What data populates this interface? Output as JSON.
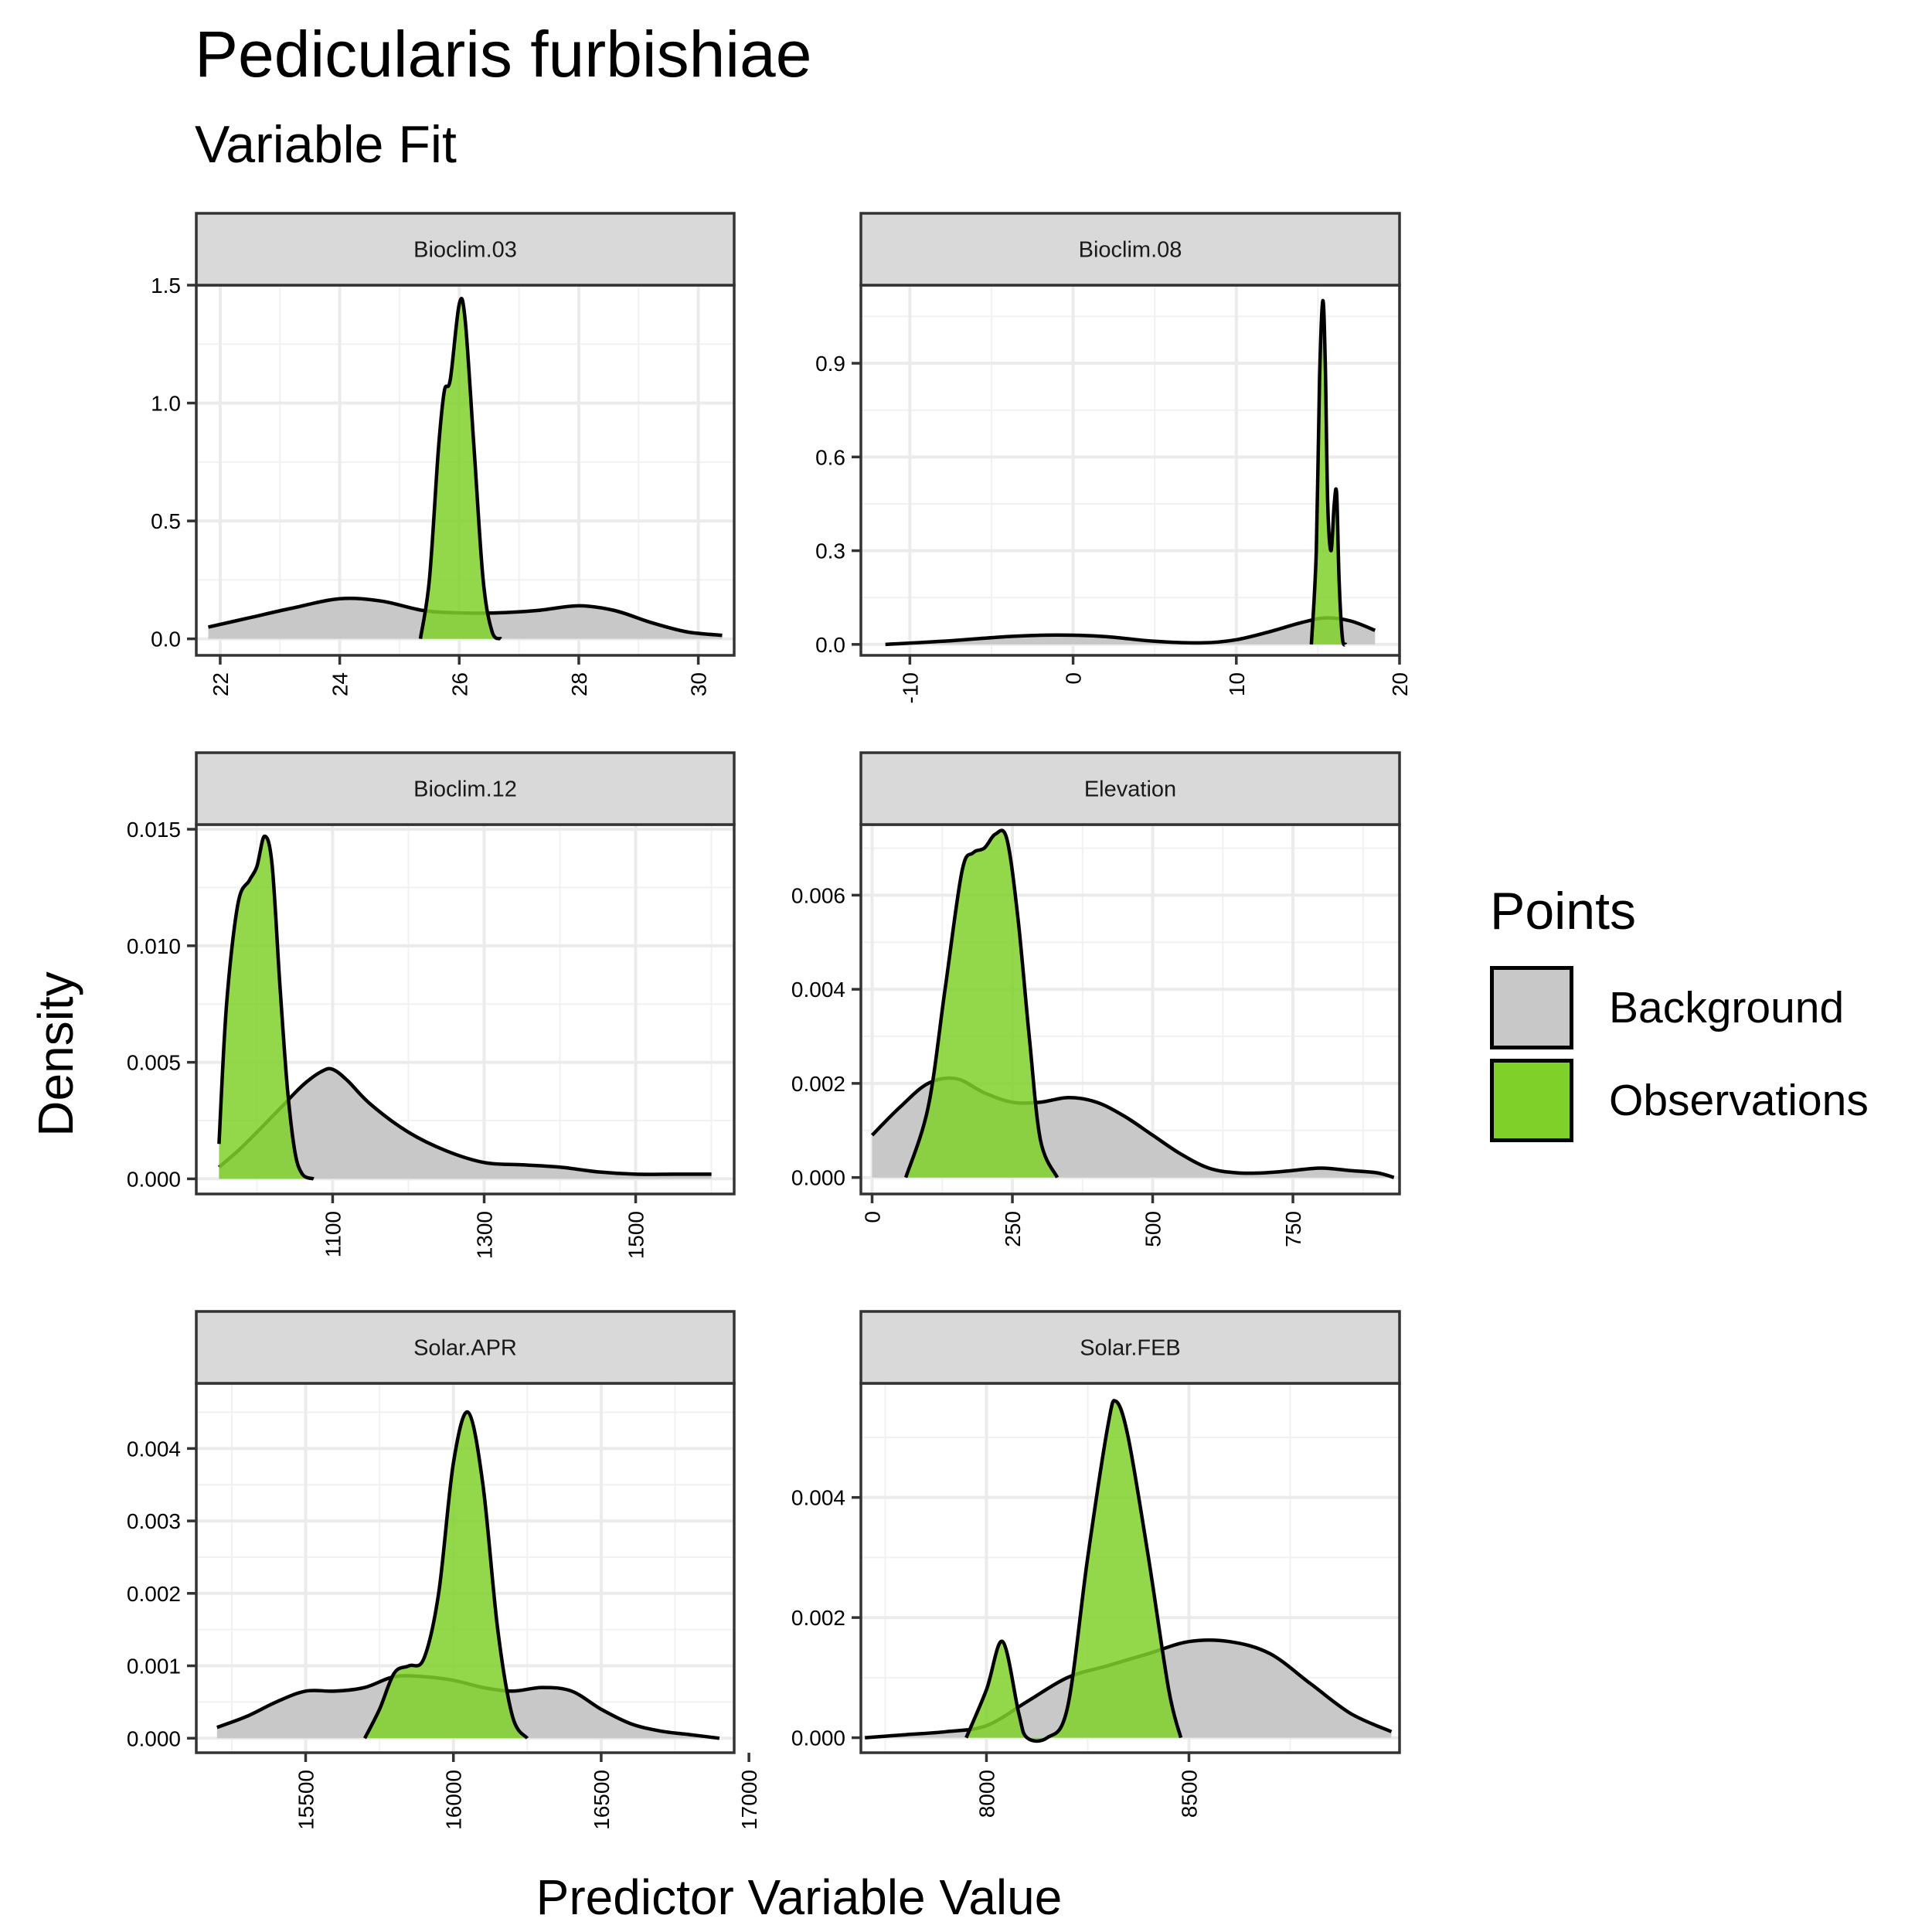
{
  "title": "Pedicularis furbishiae",
  "subtitle": "Variable Fit",
  "xlabel": "Predictor Variable Value",
  "ylabel": "Density",
  "legend": {
    "title": "Points",
    "items": [
      {
        "label": "Background",
        "color": "#c8c8c8"
      },
      {
        "label": "Observations",
        "color": "#7fd12a"
      }
    ]
  },
  "chart_data": [
    {
      "type": "area",
      "facet": "Bioclim.03",
      "xlim": [
        21.6,
        30.6
      ],
      "ylim": [
        -0.07,
        1.5
      ],
      "xticks": [
        "22",
        "24",
        "26",
        "28",
        "30"
      ],
      "xtick_values": [
        22,
        24,
        26,
        28,
        30
      ],
      "yticks": [
        "0.0",
        "0.5",
        "1.0",
        "1.5"
      ],
      "ytick_values": [
        0,
        0.5,
        1.0,
        1.5
      ],
      "series": [
        {
          "name": "Background",
          "x": [
            21.8,
            22.5,
            23.2,
            24.0,
            24.7,
            25.4,
            26.0,
            26.6,
            27.3,
            28.0,
            28.6,
            29.2,
            29.8,
            30.4
          ],
          "y": [
            0.05,
            0.09,
            0.13,
            0.17,
            0.16,
            0.12,
            0.11,
            0.11,
            0.12,
            0.14,
            0.12,
            0.07,
            0.03,
            0.015
          ]
        },
        {
          "name": "Observations",
          "x": [
            25.35,
            25.5,
            25.65,
            25.75,
            25.85,
            26.0,
            26.1,
            26.25,
            26.4,
            26.55,
            26.7
          ],
          "y": [
            0.0,
            0.25,
            0.8,
            1.05,
            1.1,
            1.42,
            1.35,
            0.8,
            0.25,
            0.03,
            0.0
          ]
        }
      ]
    },
    {
      "type": "area",
      "facet": "Bioclim.08",
      "xlim": [
        -13,
        20
      ],
      "ylim": [
        -0.035,
        1.15
      ],
      "xticks": [
        "-10",
        "0",
        "10",
        "20"
      ],
      "xtick_values": [
        -10,
        0,
        10,
        20
      ],
      "yticks": [
        "0.0",
        "0.3",
        "0.6",
        "0.9"
      ],
      "ytick_values": [
        0,
        0.3,
        0.6,
        0.9
      ],
      "series": [
        {
          "name": "Background",
          "x": [
            -11.5,
            -8,
            -4,
            -1,
            2,
            5,
            8,
            10,
            12,
            14,
            15.5,
            17,
            18.5
          ],
          "y": [
            0.0,
            0.01,
            0.025,
            0.03,
            0.025,
            0.01,
            0.005,
            0.015,
            0.04,
            0.07,
            0.085,
            0.075,
            0.045
          ]
        },
        {
          "name": "Observations",
          "x": [
            14.6,
            14.9,
            15.1,
            15.3,
            15.45,
            15.6,
            15.8,
            16.0,
            16.15,
            16.3,
            16.5,
            16.7
          ],
          "y": [
            0.0,
            0.3,
            0.85,
            1.1,
            0.9,
            0.45,
            0.3,
            0.45,
            0.48,
            0.2,
            0.02,
            0.0
          ]
        }
      ]
    },
    {
      "type": "area",
      "facet": "Bioclim.12",
      "xlim": [
        920,
        1630
      ],
      "ylim": [
        -0.00065,
        0.0152
      ],
      "xticks": [
        "1100",
        "1300",
        "1500"
      ],
      "xtick_values": [
        1100,
        1300,
        1500
      ],
      "yticks": [
        "0.000",
        "0.005",
        "0.010",
        "0.015"
      ],
      "ytick_values": [
        0,
        0.005,
        0.01,
        0.015
      ],
      "series": [
        {
          "name": "Background",
          "x": [
            950,
            975,
            1000,
            1030,
            1060,
            1085,
            1100,
            1120,
            1150,
            1200,
            1250,
            1300,
            1350,
            1400,
            1450,
            1500,
            1550,
            1600
          ],
          "y": [
            0.0005,
            0.0012,
            0.002,
            0.003,
            0.004,
            0.0046,
            0.0047,
            0.0042,
            0.0032,
            0.002,
            0.0012,
            0.0007,
            0.0006,
            0.0005,
            0.0003,
            0.0002,
            0.0002,
            0.0002
          ]
        },
        {
          "name": "Observations",
          "x": [
            950,
            960,
            975,
            990,
            1000,
            1010,
            1020,
            1030,
            1040,
            1050,
            1060,
            1075
          ],
          "y": [
            0.0015,
            0.0075,
            0.0118,
            0.0128,
            0.0134,
            0.0147,
            0.0135,
            0.0085,
            0.004,
            0.0012,
            0.0002,
            0.0
          ]
        }
      ]
    },
    {
      "type": "area",
      "facet": "Elevation",
      "xlim": [
        -20,
        940
      ],
      "ylim": [
        -0.00035,
        0.0075
      ],
      "xticks": [
        "0",
        "250",
        "500",
        "750"
      ],
      "xtick_values": [
        0,
        250,
        500,
        750
      ],
      "yticks": [
        "0.000",
        "0.002",
        "0.004",
        "0.006"
      ],
      "ytick_values": [
        0,
        0.002,
        0.004,
        0.006
      ],
      "series": [
        {
          "name": "Background",
          "x": [
            0,
            50,
            100,
            150,
            200,
            250,
            300,
            350,
            400,
            450,
            500,
            550,
            600,
            650,
            700,
            750,
            800,
            850,
            900,
            930
          ],
          "y": [
            0.0009,
            0.0015,
            0.002,
            0.0021,
            0.0018,
            0.0016,
            0.0016,
            0.0017,
            0.0016,
            0.0013,
            0.0009,
            0.0005,
            0.0002,
            0.0001,
            0.0001,
            0.00015,
            0.0002,
            0.00015,
            0.0001,
            0.0
          ]
        },
        {
          "name": "Observations",
          "x": [
            60,
            100,
            130,
            160,
            180,
            200,
            220,
            240,
            260,
            280,
            300,
            330
          ],
          "y": [
            0.0,
            0.0015,
            0.004,
            0.0065,
            0.0069,
            0.007,
            0.0073,
            0.0072,
            0.0055,
            0.003,
            0.0008,
            0.0
          ]
        }
      ]
    },
    {
      "type": "area",
      "facet": "Solar.APR",
      "xlim": [
        15130,
        16950
      ],
      "ylim": [
        -0.0002,
        0.0049
      ],
      "xticks": [
        "15500",
        "16000",
        "16500",
        "17000"
      ],
      "xtick_values": [
        15500,
        16000,
        16500,
        17000
      ],
      "yticks": [
        "0.000",
        "0.001",
        "0.002",
        "0.003",
        "0.004"
      ],
      "ytick_values": [
        0,
        0.001,
        0.002,
        0.003,
        0.004
      ],
      "series": [
        {
          "name": "Background",
          "x": [
            15200,
            15300,
            15400,
            15500,
            15600,
            15700,
            15800,
            15900,
            16000,
            16100,
            16200,
            16300,
            16400,
            16500,
            16600,
            16700,
            16800,
            16900
          ],
          "y": [
            0.00015,
            0.0003,
            0.0005,
            0.00065,
            0.00065,
            0.0007,
            0.00085,
            0.00085,
            0.0008,
            0.0007,
            0.00065,
            0.0007,
            0.00065,
            0.0004,
            0.0002,
            0.0001,
            5e-05,
            0.0
          ]
        },
        {
          "name": "Observations",
          "x": [
            15700,
            15750,
            15800,
            15850,
            15900,
            15950,
            16000,
            16050,
            16100,
            16150,
            16200,
            16250
          ],
          "y": [
            0.0,
            0.0004,
            0.0009,
            0.001,
            0.0011,
            0.002,
            0.0038,
            0.0045,
            0.0035,
            0.0015,
            0.0003,
            0.0
          ]
        }
      ]
    },
    {
      "type": "area",
      "facet": "Solar.FEB",
      "xlim": [
        7690,
        9020
      ],
      "ylim": [
        -0.00025,
        0.0059
      ],
      "xticks": [
        "8000",
        "8500"
      ],
      "xtick_values": [
        8000,
        8500
      ],
      "yticks": [
        "0.000",
        "0.002",
        "0.004"
      ],
      "ytick_values": [
        0,
        0.002,
        0.004
      ],
      "series": [
        {
          "name": "Background",
          "x": [
            7700,
            7800,
            7900,
            8000,
            8100,
            8200,
            8300,
            8400,
            8500,
            8600,
            8700,
            8800,
            8900,
            9000
          ],
          "y": [
            0.0,
            5e-05,
            0.0001,
            0.0002,
            0.0006,
            0.001,
            0.0012,
            0.0014,
            0.0016,
            0.0016,
            0.0014,
            0.0009,
            0.0004,
            0.0001
          ]
        },
        {
          "name": "Observations",
          "x": [
            7950,
            8000,
            8040,
            8080,
            8100,
            8150,
            8200,
            8250,
            8300,
            8320,
            8350,
            8400,
            8450,
            8480
          ],
          "y": [
            0.0,
            0.0008,
            0.0016,
            0.0004,
            0.0,
            0.0,
            0.0005,
            0.003,
            0.0052,
            0.0056,
            0.005,
            0.003,
            0.0008,
            0.0
          ]
        }
      ]
    }
  ]
}
